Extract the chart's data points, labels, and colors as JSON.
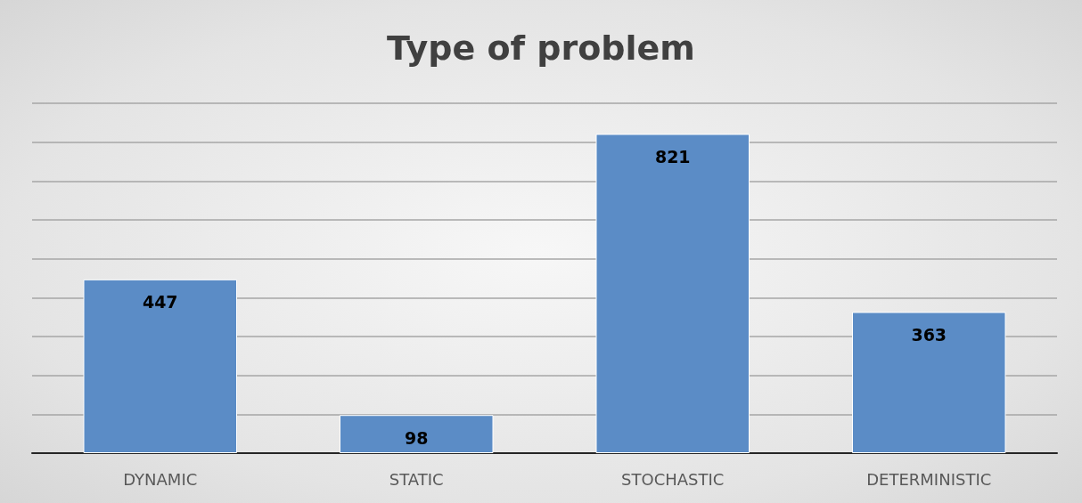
{
  "chart_data": {
    "type": "bar",
    "title": "Type of problem",
    "categories": [
      "DYNAMIC",
      "STATIC",
      "STOCHASTIC",
      "DETERMINISTIC"
    ],
    "values": [
      447,
      98,
      821,
      363
    ],
    "color": "#5b8cc6",
    "ylim": [
      0,
      900
    ],
    "yticks": [
      {
        "value": 0,
        "label": null
      },
      {
        "value": 100,
        "label": null
      },
      {
        "value": 200,
        "label": null
      },
      {
        "value": 300,
        "label": null
      },
      {
        "value": 400,
        "label": null
      },
      {
        "value": 500,
        "label": null
      },
      {
        "value": 600,
        "label": null
      },
      {
        "value": 700,
        "label": null
      },
      {
        "value": 800,
        "label": null
      },
      {
        "value": 900,
        "label": null
      }
    ],
    "grid": true,
    "data_labels": true
  }
}
